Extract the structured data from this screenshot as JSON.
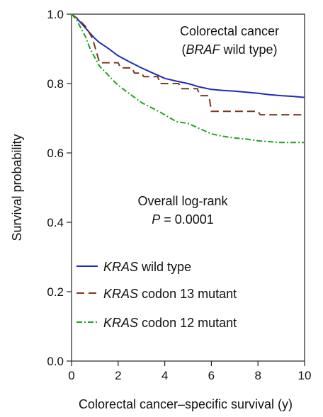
{
  "chart_data": {
    "type": "line",
    "title": "",
    "xlabel": "Colorectal cancer–specific survival (y)",
    "ylabel": "Survival probability",
    "xlim": [
      0,
      10
    ],
    "ylim": [
      0,
      1
    ],
    "x_ticks": [
      0,
      2,
      4,
      6,
      8,
      10
    ],
    "y_ticks": [
      "0.0",
      "0.2",
      "0.4",
      "0.6",
      "0.8",
      "1.0"
    ],
    "grid": false,
    "legend_position": "bottom-left",
    "annotations": {
      "subgroup_line1": "Colorectal cancer",
      "subgroup_italic": "BRAF",
      "subgroup_rest": " wild type)",
      "test_line1": "Overall log-rank",
      "p_symbol": "P",
      "p_rest": " = 0.0001"
    },
    "series": [
      {
        "name": "KRAS wild type",
        "name_italic": "KRAS",
        "name_rest": " wild type",
        "color": "#1f2bb8",
        "dash": "solid",
        "points": [
          [
            0,
            1.0
          ],
          [
            0.2,
            0.99
          ],
          [
            0.4,
            0.975
          ],
          [
            0.6,
            0.96
          ],
          [
            0.8,
            0.945
          ],
          [
            1.0,
            0.93
          ],
          [
            1.2,
            0.918
          ],
          [
            1.5,
            0.905
          ],
          [
            1.8,
            0.89
          ],
          [
            2.0,
            0.88
          ],
          [
            2.5,
            0.862
          ],
          [
            3.0,
            0.845
          ],
          [
            3.5,
            0.83
          ],
          [
            4.0,
            0.815
          ],
          [
            4.5,
            0.807
          ],
          [
            5.0,
            0.8
          ],
          [
            5.5,
            0.79
          ],
          [
            6.0,
            0.783
          ],
          [
            6.5,
            0.78
          ],
          [
            7.0,
            0.778
          ],
          [
            7.5,
            0.775
          ],
          [
            8.0,
            0.772
          ],
          [
            8.5,
            0.768
          ],
          [
            9.0,
            0.765
          ],
          [
            9.5,
            0.763
          ],
          [
            10.0,
            0.76
          ]
        ]
      },
      {
        "name": "KRAS codon 13 mutant",
        "name_italic": "KRAS",
        "name_rest": " codon 13 mutant",
        "color": "#7b3a1c",
        "dash": "long-dash",
        "points": [
          [
            0,
            1.0
          ],
          [
            0.3,
            0.985
          ],
          [
            0.6,
            0.965
          ],
          [
            0.9,
            0.93
          ],
          [
            1.2,
            0.86
          ],
          [
            2.0,
            0.86
          ],
          [
            2.1,
            0.845
          ],
          [
            2.6,
            0.845
          ],
          [
            2.7,
            0.83
          ],
          [
            3.0,
            0.83
          ],
          [
            3.1,
            0.82
          ],
          [
            3.7,
            0.82
          ],
          [
            3.8,
            0.8
          ],
          [
            4.6,
            0.8
          ],
          [
            4.7,
            0.785
          ],
          [
            5.4,
            0.785
          ],
          [
            5.5,
            0.765
          ],
          [
            5.9,
            0.765
          ],
          [
            6.0,
            0.72
          ],
          [
            8.0,
            0.72
          ],
          [
            8.1,
            0.71
          ],
          [
            10.0,
            0.71
          ]
        ]
      },
      {
        "name": "KRAS codon 12 mutant",
        "name_italic": "KRAS",
        "name_rest": " codon 12 mutant",
        "color": "#22a322",
        "dash": "dash-dot",
        "points": [
          [
            0,
            1.0
          ],
          [
            0.2,
            0.985
          ],
          [
            0.4,
            0.96
          ],
          [
            0.6,
            0.935
          ],
          [
            0.8,
            0.9
          ],
          [
            1.0,
            0.875
          ],
          [
            1.2,
            0.85
          ],
          [
            1.5,
            0.83
          ],
          [
            1.8,
            0.808
          ],
          [
            2.0,
            0.795
          ],
          [
            2.3,
            0.78
          ],
          [
            2.6,
            0.765
          ],
          [
            3.0,
            0.745
          ],
          [
            3.3,
            0.735
          ],
          [
            3.6,
            0.725
          ],
          [
            4.0,
            0.71
          ],
          [
            4.5,
            0.69
          ],
          [
            5.0,
            0.685
          ],
          [
            5.5,
            0.67
          ],
          [
            6.0,
            0.655
          ],
          [
            6.5,
            0.648
          ],
          [
            7.0,
            0.643
          ],
          [
            7.5,
            0.64
          ],
          [
            8.0,
            0.635
          ],
          [
            9.0,
            0.63
          ],
          [
            10.0,
            0.63
          ]
        ]
      }
    ]
  }
}
